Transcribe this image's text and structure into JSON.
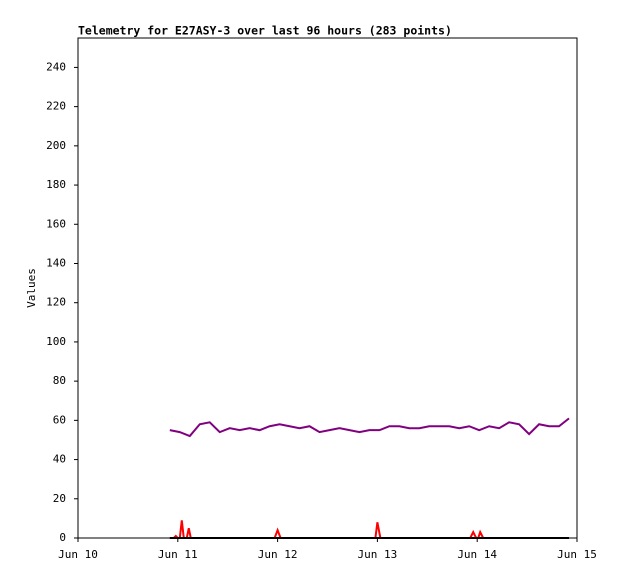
{
  "chart_data": {
    "type": "line",
    "title": "Telemetry for E27ASY-3 over last 96 hours (283 points)",
    "ylabel": "Values",
    "xlim": [
      10,
      15
    ],
    "xticks": [
      {
        "value": 10,
        "label": "Jun 10"
      },
      {
        "value": 11,
        "label": "Jun 11"
      },
      {
        "value": 12,
        "label": "Jun 12"
      },
      {
        "value": 13,
        "label": "Jun 13"
      },
      {
        "value": 14,
        "label": "Jun 14"
      },
      {
        "value": 15,
        "label": "Jun 15"
      }
    ],
    "ylim": [
      0,
      255
    ],
    "yticks": [
      0,
      20,
      40,
      60,
      80,
      100,
      120,
      140,
      160,
      180,
      200,
      220,
      240
    ],
    "grid": false,
    "series": [
      {
        "color": "#800080",
        "x": [
          10.92,
          11.02,
          11.12,
          11.22,
          11.32,
          11.42,
          11.52,
          11.62,
          11.72,
          11.82,
          11.92,
          12.02,
          12.12,
          12.22,
          12.32,
          12.42,
          12.52,
          12.62,
          12.72,
          12.82,
          12.92,
          13.02,
          13.12,
          13.22,
          13.32,
          13.42,
          13.52,
          13.62,
          13.72,
          13.82,
          13.92,
          14.02,
          14.12,
          14.22,
          14.32,
          14.42,
          14.52,
          14.62,
          14.72,
          14.82,
          14.92
        ],
        "values": [
          55,
          54,
          52,
          58,
          59,
          54,
          56,
          55,
          56,
          55,
          57,
          58,
          57,
          56,
          57,
          54,
          55,
          56,
          55,
          54,
          55,
          55,
          57,
          57,
          56,
          56,
          57,
          57,
          57,
          56,
          57,
          55,
          57,
          56,
          59,
          58,
          53,
          58,
          57,
          57,
          61
        ]
      },
      {
        "color": "#ff0000",
        "x": [
          10.92,
          10.96,
          10.98,
          11.0,
          11.02,
          11.04,
          11.06,
          11.09,
          11.11,
          11.13,
          11.97,
          12.0,
          12.03,
          12.98,
          13.0,
          13.03,
          13.93,
          13.96,
          13.99,
          14.01,
          14.03,
          14.06,
          14.92
        ],
        "values": [
          0,
          0,
          1,
          0,
          0,
          9,
          0,
          0,
          5,
          0,
          0,
          4,
          0,
          0,
          8,
          0,
          0,
          3,
          0,
          0,
          3,
          0,
          0
        ]
      },
      {
        "color": "#000000",
        "x": [
          10.92,
          14.92
        ],
        "values": [
          0,
          0
        ]
      }
    ]
  }
}
